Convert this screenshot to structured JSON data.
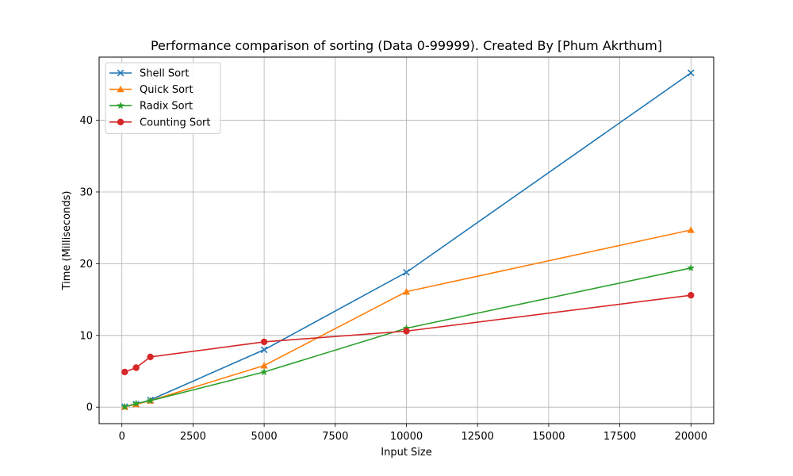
{
  "chart_data": {
    "type": "line",
    "title": "Performance comparison of sorting (Data 0-99999). Created By [Phum Akrthum]",
    "xlabel": "Input Size",
    "ylabel": "Time (Milliseconds)",
    "xlim": [
      -800,
      20800
    ],
    "ylim": [
      -2.3,
      48.8
    ],
    "xticks": [
      0,
      2500,
      5000,
      7500,
      10000,
      12500,
      15000,
      17500,
      20000
    ],
    "yticks": [
      0,
      10,
      20,
      30,
      40
    ],
    "grid": true,
    "legend_position": "top-left",
    "series": [
      {
        "name": "Shell Sort",
        "color": "#1f77b4",
        "marker": "x",
        "x": [
          100,
          500,
          1000,
          5000,
          10000,
          20000
        ],
        "y": [
          0.05,
          0.4,
          1.0,
          8.0,
          18.8,
          46.6
        ]
      },
      {
        "name": "Quick Sort",
        "color": "#ff7f0e",
        "marker": "triangle",
        "x": [
          100,
          500,
          1000,
          5000,
          10000,
          20000
        ],
        "y": [
          0.05,
          0.4,
          0.9,
          5.8,
          16.1,
          24.7
        ]
      },
      {
        "name": "Radix Sort",
        "color": "#2ca02c",
        "marker": "star",
        "x": [
          100,
          500,
          1000,
          5000,
          10000,
          20000
        ],
        "y": [
          0.05,
          0.5,
          0.9,
          4.9,
          11.0,
          19.4
        ]
      },
      {
        "name": "Counting Sort",
        "color": "#d62728",
        "marker": "circle",
        "x": [
          100,
          500,
          1000,
          5000,
          10000,
          20000
        ],
        "y": [
          4.9,
          5.5,
          7.0,
          9.1,
          10.6,
          15.6
        ]
      }
    ]
  }
}
